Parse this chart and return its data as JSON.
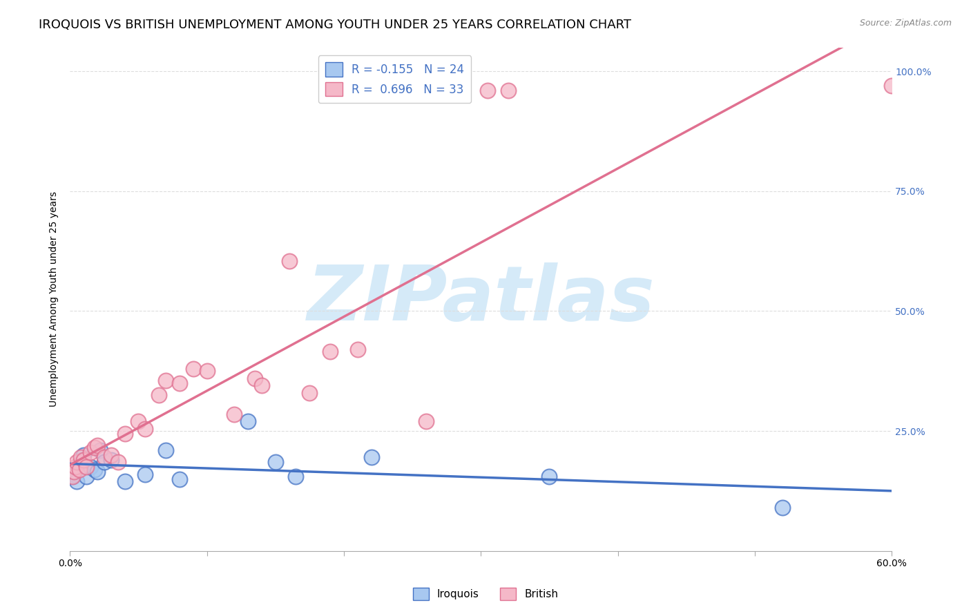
{
  "title": "IROQUOIS VS BRITISH UNEMPLOYMENT AMONG YOUTH UNDER 25 YEARS CORRELATION CHART",
  "source": "Source: ZipAtlas.com",
  "ylabel": "Unemployment Among Youth under 25 years",
  "xlim": [
    0.0,
    0.6
  ],
  "ylim": [
    0.0,
    1.05
  ],
  "xticks": [
    0.0,
    0.1,
    0.2,
    0.3,
    0.4,
    0.5,
    0.6
  ],
  "xticklabels": [
    "0.0%",
    "",
    "",
    "",
    "",
    "",
    "60.0%"
  ],
  "ytick_positions": [
    0.25,
    0.5,
    0.75,
    1.0
  ],
  "ytick_labels": [
    "25.0%",
    "50.0%",
    "75.0%",
    "100.0%"
  ],
  "iroquois_color": "#A8C8F0",
  "british_color": "#F5B8C8",
  "iroquois_line_color": "#4472C4",
  "british_line_color": "#E07090",
  "iroquois_R": -0.155,
  "iroquois_N": 24,
  "british_R": 0.696,
  "british_N": 33,
  "watermark": "ZIPatlas",
  "watermark_color": "#D5EAF8",
  "iroquois_x": [
    0.002,
    0.003,
    0.005,
    0.007,
    0.008,
    0.009,
    0.01,
    0.012,
    0.015,
    0.018,
    0.02,
    0.022,
    0.025,
    0.03,
    0.04,
    0.055,
    0.07,
    0.08,
    0.13,
    0.15,
    0.165,
    0.22,
    0.35,
    0.52
  ],
  "iroquois_y": [
    0.155,
    0.16,
    0.145,
    0.175,
    0.185,
    0.19,
    0.2,
    0.155,
    0.175,
    0.17,
    0.165,
    0.21,
    0.185,
    0.19,
    0.145,
    0.16,
    0.21,
    0.15,
    0.27,
    0.185,
    0.155,
    0.195,
    0.155,
    0.09
  ],
  "british_x": [
    0.002,
    0.003,
    0.004,
    0.005,
    0.007,
    0.008,
    0.01,
    0.012,
    0.015,
    0.018,
    0.02,
    0.025,
    0.03,
    0.035,
    0.04,
    0.05,
    0.055,
    0.065,
    0.07,
    0.08,
    0.09,
    0.1,
    0.12,
    0.135,
    0.14,
    0.16,
    0.175,
    0.19,
    0.21,
    0.26,
    0.305,
    0.32,
    0.6
  ],
  "british_y": [
    0.155,
    0.165,
    0.175,
    0.185,
    0.17,
    0.195,
    0.19,
    0.175,
    0.205,
    0.215,
    0.22,
    0.195,
    0.2,
    0.185,
    0.245,
    0.27,
    0.255,
    0.325,
    0.355,
    0.35,
    0.38,
    0.375,
    0.285,
    0.36,
    0.345,
    0.605,
    0.33,
    0.415,
    0.42,
    0.27,
    0.96,
    0.96,
    0.97
  ],
  "grid_color": "#DDDDDD",
  "background_color": "#FFFFFF",
  "title_fontsize": 13,
  "axis_label_fontsize": 10,
  "tick_fontsize": 10,
  "legend_fontsize": 12
}
